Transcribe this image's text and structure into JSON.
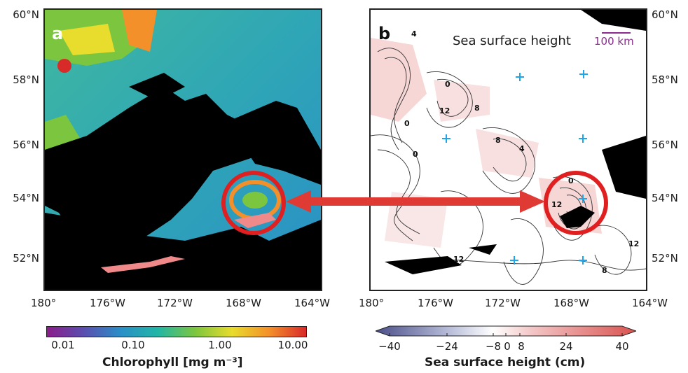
{
  "panel_a": {
    "letter": "a",
    "lat_labels": [
      "60°N",
      "58°N",
      "56°N",
      "54°N",
      "52°N"
    ],
    "lon_labels": [
      "180°",
      "176°W",
      "172°W",
      "168°W",
      "164°W"
    ],
    "colorbar": {
      "title": "Chlorophyll [mg m⁻³]",
      "ticks": [
        "0.01",
        "0.10",
        "1.00",
        "10.00"
      ],
      "colors": [
        "#8b1e8a",
        "#5a4fb0",
        "#2a8fc7",
        "#22b6a6",
        "#7cc63f",
        "#e8dc2c",
        "#f3902a",
        "#d92a2a"
      ],
      "scale": "log"
    }
  },
  "panel_b": {
    "letter": "b",
    "title": "Sea surface height",
    "scale_bar_label": "100 km",
    "lat_labels": [
      "60°N",
      "58°N",
      "56°N",
      "54°N",
      "52°N"
    ],
    "lon_labels": [
      "180°",
      "176°W",
      "172°W",
      "168°W",
      "164°W"
    ],
    "contour_labels": [
      "4",
      "0",
      "12",
      "8",
      "0",
      "0",
      "8",
      "4",
      "12",
      "0",
      "12",
      "12",
      "8"
    ],
    "colorbar": {
      "title": "Sea surface height (cm)",
      "ticks": [
        "−40",
        "−24",
        "−8",
        "0",
        "8",
        "24",
        "40"
      ],
      "colors": [
        "#4a4f8a",
        "#b7bcd8",
        "#ffffff",
        "#f3c6c6",
        "#d9524f"
      ]
    }
  },
  "annotation": {
    "circle_color": "#e02020",
    "arrow_color": "#e03a35",
    "marker_color": "#1ea6e8"
  }
}
